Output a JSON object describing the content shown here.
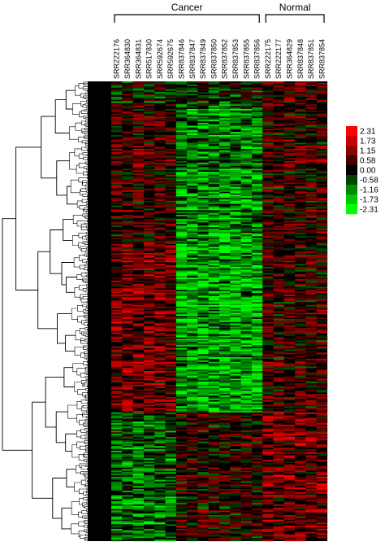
{
  "chart_data": {
    "type": "heatmap",
    "groups": [
      {
        "name": "Cancer",
        "samples": [
          "SRR222176",
          "SRR364830",
          "SRR364831",
          "SRR517830",
          "SRR592674",
          "SRR592675",
          "SRR837846",
          "SRR837847",
          "SRR837849",
          "SRR837850",
          "SRR837852",
          "SRR837853",
          "SRR837855",
          "SRR837856"
        ]
      },
      {
        "name": "Normal",
        "samples": [
          "SRR222175",
          "SRR222177",
          "SRR364829",
          "SRR837848",
          "SRR837851",
          "SRR837854"
        ]
      }
    ],
    "columns": [
      "SRR222176",
      "SRR364830",
      "SRR364831",
      "SRR517830",
      "SRR592674",
      "SRR592675",
      "SRR837846",
      "SRR837847",
      "SRR837849",
      "SRR837850",
      "SRR837852",
      "SRR837853",
      "SRR837855",
      "SRR837856",
      "SRR222175",
      "SRR222177",
      "SRR364829",
      "SRR837848",
      "SRR837851",
      "SRR837854"
    ],
    "legend": {
      "ticks": [
        "2.31",
        "1.73",
        "1.15",
        "0.58",
        "0.00",
        "-0.58",
        "-1.16",
        "-1.73",
        "-2.31"
      ],
      "colors": [
        "#ff0000",
        "#c80000",
        "#8c0000",
        "#460000",
        "#000000",
        "#004600",
        "#008c00",
        "#00c800",
        "#00ff00"
      ]
    },
    "value_range": [
      -2.31,
      2.31
    ],
    "row_count": 300,
    "row_dendrogram": true
  }
}
